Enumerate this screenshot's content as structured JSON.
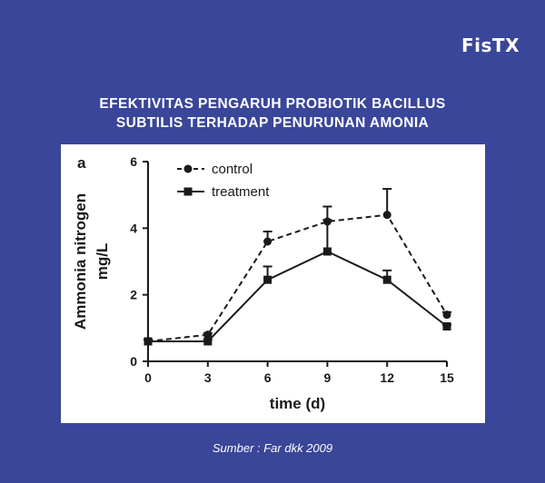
{
  "brand": {
    "logo_text": "FisTX"
  },
  "header": {
    "title_line1": "EFEKTIVITAS PENGARUH PROBIOTIK BACILLUS",
    "title_line2": "SUBTILIS TERHADAP PENURUNAN AMONIA"
  },
  "footer": {
    "source": "Sumber : Far dkk 2009"
  },
  "colors": {
    "background": "#3a4699",
    "panel": "#ffffff",
    "ink": "#1a1a1a"
  },
  "chart_data": {
    "type": "line",
    "panel_label": "a",
    "xlabel": "time (d)",
    "ylabel_line1": "Ammonia nitrogen",
    "ylabel_line2": "mg/L",
    "xlim": [
      0,
      15
    ],
    "ylim": [
      0,
      6
    ],
    "x_ticks": [
      0,
      3,
      6,
      9,
      12,
      15
    ],
    "y_ticks": [
      0,
      2,
      4,
      6
    ],
    "legend_position": "top-left",
    "grid": false,
    "series": [
      {
        "name": "control",
        "marker": "circle",
        "line": "dashed",
        "x": [
          0,
          3,
          6,
          9,
          12,
          15
        ],
        "y": [
          0.6,
          0.8,
          3.6,
          4.2,
          4.4,
          1.4
        ],
        "err": [
          0.05,
          0.05,
          0.3,
          0.45,
          0.78,
          0.08
        ]
      },
      {
        "name": "treatment",
        "marker": "square",
        "line": "solid",
        "x": [
          0,
          3,
          6,
          9,
          12,
          15
        ],
        "y": [
          0.6,
          0.6,
          2.45,
          3.3,
          2.45,
          1.05
        ],
        "err": [
          0.05,
          0.05,
          0.4,
          0.95,
          0.28,
          0.05
        ]
      }
    ]
  }
}
